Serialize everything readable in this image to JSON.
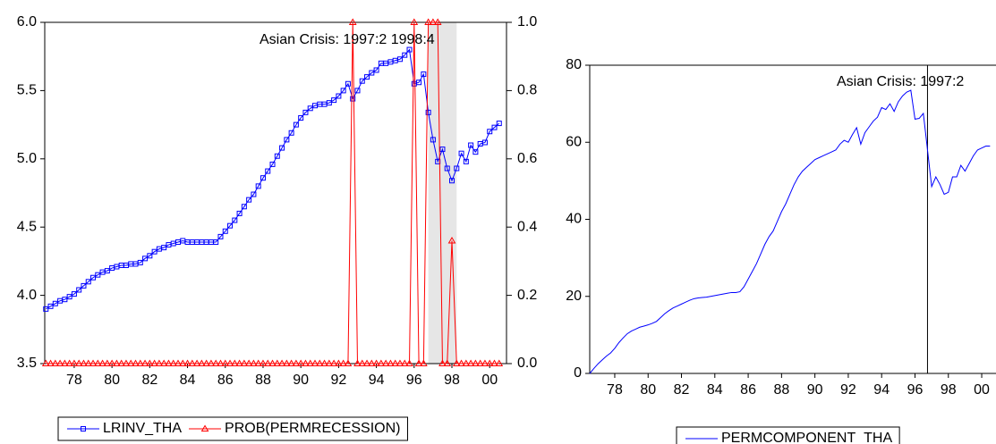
{
  "chart_data": [
    {
      "type": "line",
      "annotation": "Asian Crisis: 1997:2 1998:4",
      "shade": [
        1997.25,
        1998.75
      ],
      "x": [
        1977,
        1977.25,
        1977.5,
        1977.75,
        1978,
        1978.25,
        1978.5,
        1978.75,
        1979,
        1979.25,
        1979.5,
        1979.75,
        1980,
        1980.25,
        1980.5,
        1980.75,
        1981,
        1981.25,
        1981.5,
        1981.75,
        1982,
        1982.25,
        1982.5,
        1982.75,
        1983,
        1983.25,
        1983.5,
        1983.75,
        1984,
        1984.25,
        1984.5,
        1984.75,
        1985,
        1985.25,
        1985.5,
        1985.75,
        1986,
        1986.25,
        1986.5,
        1986.75,
        1987,
        1987.25,
        1987.5,
        1987.75,
        1988,
        1988.25,
        1988.5,
        1988.75,
        1989,
        1989.25,
        1989.5,
        1989.75,
        1990,
        1990.25,
        1990.5,
        1990.75,
        1991,
        1991.25,
        1991.5,
        1991.75,
        1992,
        1992.25,
        1992.5,
        1992.75,
        1993,
        1993.25,
        1993.5,
        1993.75,
        1994,
        1994.25,
        1994.5,
        1994.75,
        1995,
        1995.25,
        1995.5,
        1995.75,
        1996,
        1996.25,
        1996.5,
        1996.75,
        1997,
        1997.25,
        1997.5,
        1997.75,
        1998,
        1998.25,
        1998.5,
        1998.75,
        1999,
        1999.25,
        1999.5,
        1999.75,
        2000,
        2000.25,
        2000.5,
        2000.75,
        2001
      ],
      "series": [
        {
          "name": "LRINV_THA",
          "color": "#0000ff",
          "marker": "square",
          "axis": "y",
          "values": [
            3.9,
            3.92,
            3.94,
            3.96,
            3.97,
            3.99,
            4.01,
            4.04,
            4.07,
            4.1,
            4.13,
            4.15,
            4.17,
            4.18,
            4.2,
            4.21,
            4.22,
            4.22,
            4.23,
            4.23,
            4.24,
            4.27,
            4.29,
            4.32,
            4.34,
            4.35,
            4.37,
            4.38,
            4.39,
            4.4,
            4.39,
            4.39,
            4.39,
            4.39,
            4.39,
            4.39,
            4.39,
            4.43,
            4.47,
            4.51,
            4.55,
            4.6,
            4.65,
            4.7,
            4.74,
            4.8,
            4.86,
            4.91,
            4.96,
            5.02,
            5.08,
            5.14,
            5.19,
            5.25,
            5.3,
            5.34,
            5.37,
            5.39,
            5.4,
            5.4,
            5.41,
            5.43,
            5.46,
            5.5,
            5.55,
            5.44,
            5.5,
            5.57,
            5.6,
            5.63,
            5.65,
            5.7,
            5.7,
            5.71,
            5.72,
            5.73,
            5.76,
            5.8,
            5.55,
            5.56,
            5.62,
            5.34,
            5.14,
            4.98,
            5.07,
            4.93,
            4.84,
            4.93,
            5.04,
            4.98,
            5.1,
            5.05,
            5.11,
            5.12,
            5.2,
            5.23,
            5.26
          ]
        },
        {
          "name": "PROB(PERMRECESSION)",
          "color": "#ff0000",
          "marker": "triangle",
          "axis": "y2",
          "values": [
            0,
            0,
            0,
            0,
            0,
            0,
            0,
            0,
            0,
            0,
            0,
            0,
            0,
            0,
            0,
            0,
            0,
            0,
            0,
            0,
            0,
            0,
            0,
            0,
            0,
            0,
            0,
            0,
            0,
            0,
            0,
            0,
            0,
            0,
            0,
            0,
            0,
            0,
            0,
            0,
            0,
            0,
            0,
            0,
            0,
            0,
            0,
            0,
            0,
            0,
            0,
            0,
            0,
            0,
            0,
            0,
            0,
            0,
            0,
            0,
            0,
            0,
            0,
            0,
            0,
            1,
            0,
            0,
            0,
            0,
            0,
            0,
            0,
            0,
            0,
            0,
            0,
            0,
            1,
            0,
            0,
            1,
            1,
            1,
            0,
            0,
            0.36,
            0,
            0,
            0,
            0,
            0,
            0,
            0,
            0,
            0,
            0
          ]
        }
      ],
      "xlim": [
        1976.94,
        2001.39
      ],
      "xticks": [
        {
          "value": 1978.5,
          "label": "78"
        },
        {
          "value": 1980.5,
          "label": "80"
        },
        {
          "value": 1982.5,
          "label": "82"
        },
        {
          "value": 1984.5,
          "label": "84"
        },
        {
          "value": 1986.5,
          "label": "86"
        },
        {
          "value": 1988.5,
          "label": "88"
        },
        {
          "value": 1990.5,
          "label": "90"
        },
        {
          "value": 1992.5,
          "label": "92"
        },
        {
          "value": 1994.5,
          "label": "94"
        },
        {
          "value": 1996.5,
          "label": "96"
        },
        {
          "value": 1998.5,
          "label": "98"
        },
        {
          "value": 2000.5,
          "label": "00"
        }
      ],
      "ylim": [
        3.5,
        6.0
      ],
      "yticks": [
        3.5,
        {
          "value": 4,
          "label": "4.0"
        },
        4.5,
        {
          "value": 5,
          "label": "5.0"
        },
        5.5,
        {
          "value": 6,
          "label": "6.0"
        }
      ],
      "y2lim": [
        0,
        1
      ],
      "y2ticks": [
        {
          "value": 0,
          "label": "0.0"
        },
        0.2,
        0.4,
        0.6,
        0.8,
        {
          "value": 1,
          "label": "1.0"
        }
      ]
    },
    {
      "type": "line",
      "annotation": "Asian Crisis: 1997:2",
      "vline": 1997.25,
      "x": [
        1977,
        1977.25,
        1977.5,
        1977.75,
        1978,
        1978.25,
        1978.5,
        1978.75,
        1979,
        1979.25,
        1979.5,
        1979.75,
        1980,
        1980.25,
        1980.5,
        1980.75,
        1981,
        1981.25,
        1981.5,
        1981.75,
        1982,
        1982.25,
        1982.5,
        1982.75,
        1983,
        1983.25,
        1983.5,
        1983.75,
        1984,
        1984.25,
        1984.5,
        1984.75,
        1985,
        1985.25,
        1985.5,
        1985.75,
        1986,
        1986.25,
        1986.5,
        1986.75,
        1987,
        1987.25,
        1987.5,
        1987.75,
        1988,
        1988.25,
        1988.5,
        1988.75,
        1989,
        1989.25,
        1989.5,
        1989.75,
        1990,
        1990.25,
        1990.5,
        1990.75,
        1991,
        1991.25,
        1991.5,
        1991.75,
        1992,
        1992.25,
        1992.5,
        1992.75,
        1993,
        1993.25,
        1993.5,
        1993.75,
        1994,
        1994.25,
        1994.5,
        1994.75,
        1995,
        1995.25,
        1995.5,
        1995.75,
        1996,
        1996.25,
        1996.5,
        1996.75,
        1997,
        1997.25,
        1997.5,
        1997.75,
        1998,
        1998.25,
        1998.5,
        1998.75,
        1999,
        1999.25,
        1999.5,
        1999.75,
        2000,
        2000.25,
        2000.5,
        2000.75,
        2001
      ],
      "series": [
        {
          "name": "PERMCOMPONENT_THA",
          "color": "#0000ff",
          "marker": "none",
          "axis": "y",
          "values": [
            0,
            1.3,
            2.5,
            3.5,
            4.5,
            5.3,
            6.5,
            8.0,
            9.2,
            10.3,
            11.0,
            11.5,
            12.0,
            12.3,
            12.6,
            13.0,
            13.5,
            14.5,
            15.5,
            16.3,
            17.0,
            17.5,
            18.0,
            18.5,
            19.0,
            19.4,
            19.6,
            19.7,
            19.8,
            20.0,
            20.2,
            20.4,
            20.6,
            20.8,
            21.0,
            21.0,
            21.2,
            22.5,
            24.5,
            26.5,
            28.5,
            31.0,
            33.5,
            35.5,
            37.0,
            39.5,
            42.0,
            44.0,
            46.5,
            49.0,
            51.0,
            52.5,
            53.5,
            54.5,
            55.5,
            56.0,
            56.5,
            57.0,
            57.5,
            58.0,
            59.5,
            60.5,
            60.0,
            62.0,
            63.8,
            59.5,
            62.5,
            64.0,
            65.5,
            66.5,
            69.0,
            68.5,
            70.0,
            68.0,
            70.5,
            72.0,
            73.0,
            73.5,
            66.0,
            66.2,
            67.5,
            58.0,
            48.5,
            51.0,
            49.0,
            46.5,
            47.0,
            51.0,
            51.0,
            54.0,
            52.5,
            54.5,
            56.5,
            58.0,
            58.5,
            59.0,
            59.0
          ]
        }
      ],
      "xlim": [
        1977,
        2002
      ],
      "xticks": [
        {
          "value": 1978.5,
          "label": "78"
        },
        {
          "value": 1980.5,
          "label": "80"
        },
        {
          "value": 1982.5,
          "label": "82"
        },
        {
          "value": 1984.5,
          "label": "84"
        },
        {
          "value": 1986.5,
          "label": "86"
        },
        {
          "value": 1988.5,
          "label": "88"
        },
        {
          "value": 1990.5,
          "label": "90"
        },
        {
          "value": 1992.5,
          "label": "92"
        },
        {
          "value": 1994.5,
          "label": "94"
        },
        {
          "value": 1996.5,
          "label": "96"
        },
        {
          "value": 1998.5,
          "label": "98"
        },
        {
          "value": 2000.5,
          "label": "00"
        }
      ],
      "ylim": [
        0,
        80
      ],
      "yticks": [
        0,
        20,
        40,
        60,
        80
      ]
    }
  ]
}
